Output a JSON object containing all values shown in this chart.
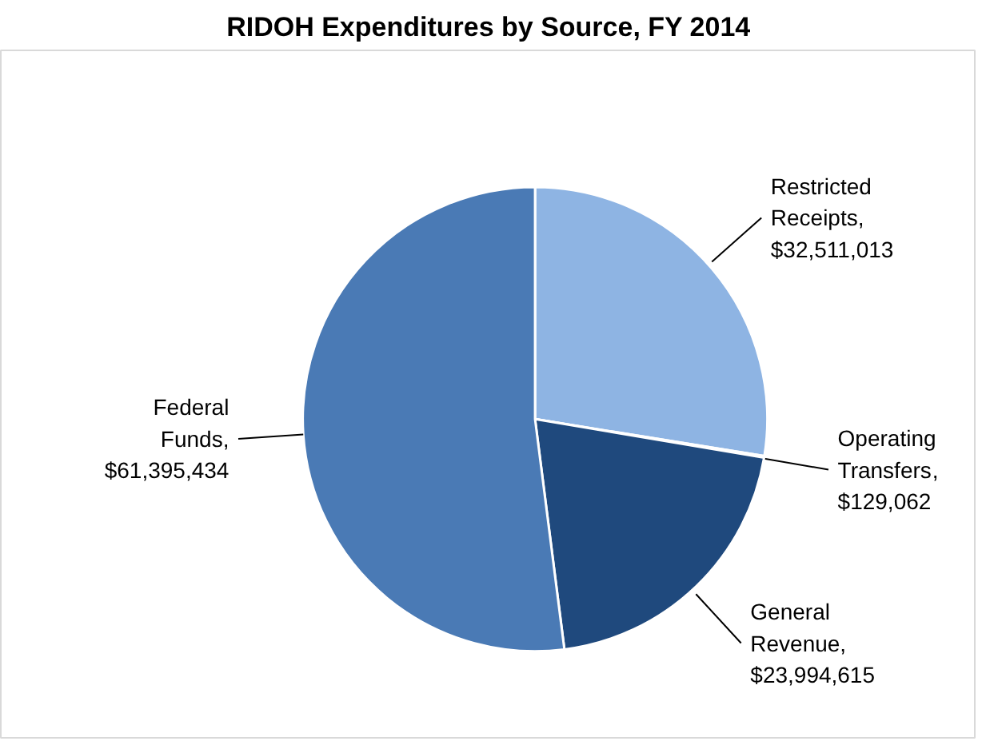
{
  "chart_data": {
    "type": "pie",
    "title": "RIDOH Expenditures by Source, FY 2014",
    "categories": [
      "Restricted Receipts",
      "Operating Transfers",
      "General Revenue",
      "Federal Funds"
    ],
    "values": [
      32511013,
      129062,
      23994615,
      61395434
    ],
    "colors": [
      "#8eb4e3",
      "#2c4d75",
      "#1f497d",
      "#4a7ab5"
    ],
    "value_labels": [
      ", $32,511,013",
      ", $129,062",
      ", $23,994,615",
      ", $61,395,434"
    ]
  }
}
